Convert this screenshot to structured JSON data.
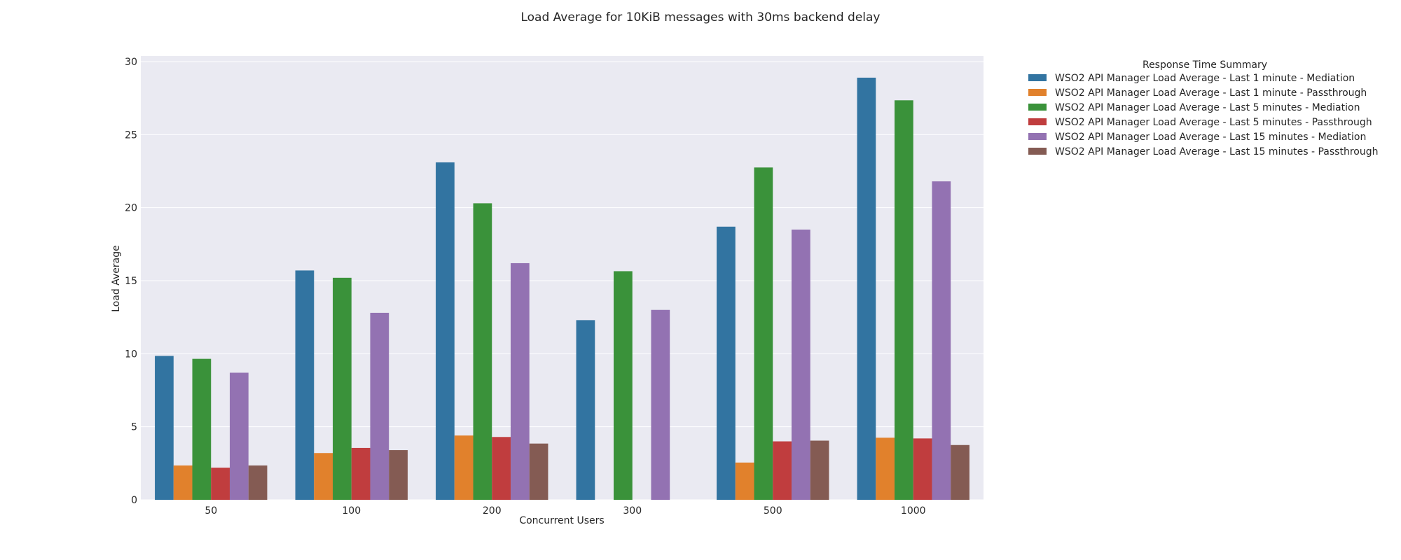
{
  "chart_data": {
    "type": "bar",
    "title": "Load Average for 10KiB messages with 30ms backend delay",
    "xlabel": "Concurrent Users",
    "ylabel": "Load Average",
    "ylim": [
      0,
      30
    ],
    "yticks": [
      0,
      5,
      10,
      15,
      20,
      25,
      30
    ],
    "grid": true,
    "legend_title": "Response Time Summary",
    "legend_placement": "outside-right",
    "categories": [
      "50",
      "100",
      "200",
      "300",
      "500",
      "1000"
    ],
    "series": [
      {
        "name": "WSO2 API Manager Load Average - Last 1 minute - Mediation",
        "color": "#3274a1",
        "values": [
          9.85,
          15.7,
          23.1,
          12.3,
          18.7,
          28.9
        ]
      },
      {
        "name": "WSO2 API Manager Load Average - Last 1 minute - Passthrough",
        "color": "#e1812c",
        "values": [
          2.35,
          3.2,
          4.4,
          null,
          2.55,
          4.25
        ]
      },
      {
        "name": "WSO2 API Manager Load Average - Last 5 minutes - Mediation",
        "color": "#3a923a",
        "values": [
          9.65,
          15.2,
          20.3,
          15.65,
          22.75,
          27.35
        ]
      },
      {
        "name": "WSO2 API Manager Load Average - Last 5 minutes - Passthrough",
        "color": "#c03d3e",
        "values": [
          2.2,
          3.55,
          4.3,
          null,
          4.0,
          4.2
        ]
      },
      {
        "name": "WSO2 API Manager Load Average - Last 15 minutes - Mediation",
        "color": "#9372b2",
        "values": [
          8.7,
          12.8,
          16.2,
          13.0,
          18.5,
          21.8
        ]
      },
      {
        "name": "WSO2 API Manager Load Average - Last 15 minutes - Passthrough",
        "color": "#845b53",
        "values": [
          2.35,
          3.4,
          3.85,
          null,
          4.05,
          3.75
        ]
      }
    ]
  },
  "colors": {
    "plot_background": "#eaeaf2",
    "grid": "#ffffff"
  }
}
